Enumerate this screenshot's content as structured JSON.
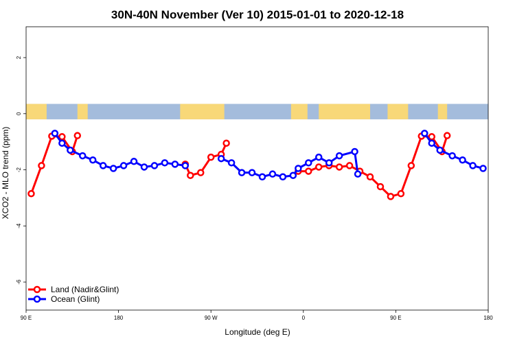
{
  "chart_data": {
    "type": "line",
    "title": "30N-40N November (Ver 10)   2015-01-01 to 2020-12-18",
    "xlabel": "Longitude (deg E)",
    "ylabel": "XCO2 - MLO trend (ppm)",
    "xlim": [
      90,
      540
    ],
    "ylim": [
      -7,
      3.1
    ],
    "x_ticks": [
      {
        "value": 90,
        "label": "90 E"
      },
      {
        "value": 180,
        "label": "180"
      },
      {
        "value": 270,
        "label": "90 W"
      },
      {
        "value": 360,
        "label": "0"
      },
      {
        "value": 450,
        "label": "90 E"
      },
      {
        "value": 540,
        "label": "180"
      }
    ],
    "y_ticks": [
      {
        "value": 2,
        "label": "2"
      },
      {
        "value": 0,
        "label": "0"
      },
      {
        "value": -2,
        "label": "-2"
      },
      {
        "value": -4,
        "label": "-4"
      },
      {
        "value": -6,
        "label": "-6"
      }
    ],
    "legend_position": "bottom-left",
    "map_strip": {
      "y_range": [
        -0.2,
        0.35
      ],
      "ocean_color": "#a4bcdc",
      "land_color": "#f8d878",
      "land_ranges": [
        [
          90,
          110
        ],
        [
          140,
          150
        ],
        [
          240,
          283
        ],
        [
          348,
          364
        ],
        [
          375,
          425
        ],
        [
          442,
          462
        ],
        [
          491,
          500
        ]
      ]
    },
    "series": [
      {
        "name": "Land (Nadir&Glint)",
        "color": "#ff0000",
        "segments": [
          [
            [
              95,
              -2.85
            ],
            [
              105,
              -1.85
            ],
            [
              115,
              -0.8
            ],
            [
              125,
              -0.82
            ],
            [
              135,
              -1.35
            ],
            [
              140,
              -0.78
            ]
          ],
          [
            [
              245,
              -1.8
            ],
            [
              250,
              -2.2
            ],
            [
              260,
              -2.1
            ],
            [
              270,
              -1.55
            ],
            [
              280,
              -1.45
            ],
            [
              285,
              -1.05
            ]
          ],
          [
            [
              355,
              -2.05
            ],
            [
              365,
              -2.05
            ],
            [
              375,
              -1.9
            ],
            [
              385,
              -1.85
            ],
            [
              395,
              -1.9
            ],
            [
              405,
              -1.85
            ],
            [
              415,
              -2.05
            ],
            [
              425,
              -2.25
            ],
            [
              435,
              -2.6
            ],
            [
              445,
              -2.95
            ],
            [
              455,
              -2.85
            ],
            [
              465,
              -1.85
            ],
            [
              475,
              -0.8
            ],
            [
              485,
              -0.82
            ],
            [
              495,
              -1.35
            ],
            [
              500,
              -0.78
            ]
          ]
        ]
      },
      {
        "name": "Ocean (Glint)",
        "color": "#0000ff",
        "segments": [
          [
            [
              118,
              -0.7
            ],
            [
              125,
              -1.05
            ],
            [
              133,
              -1.3
            ],
            [
              145,
              -1.5
            ],
            [
              155,
              -1.65
            ],
            [
              165,
              -1.85
            ],
            [
              175,
              -1.95
            ],
            [
              185,
              -1.85
            ],
            [
              195,
              -1.7
            ],
            [
              205,
              -1.9
            ],
            [
              215,
              -1.85
            ],
            [
              225,
              -1.75
            ],
            [
              235,
              -1.8
            ],
            [
              245,
              -1.85
            ]
          ],
          [
            [
              280,
              -1.6
            ],
            [
              290,
              -1.75
            ],
            [
              300,
              -2.1
            ],
            [
              310,
              -2.1
            ],
            [
              320,
              -2.25
            ],
            [
              330,
              -2.15
            ],
            [
              340,
              -2.25
            ],
            [
              350,
              -2.2
            ],
            [
              355,
              -1.95
            ],
            [
              365,
              -1.75
            ],
            [
              375,
              -1.55
            ],
            [
              385,
              -1.75
            ],
            [
              395,
              -1.5
            ],
            [
              410,
              -1.35
            ],
            [
              413,
              -2.15
            ]
          ],
          [
            [
              478,
              -0.7
            ],
            [
              485,
              -1.05
            ],
            [
              493,
              -1.3
            ],
            [
              505,
              -1.5
            ],
            [
              515,
              -1.65
            ],
            [
              525,
              -1.85
            ],
            [
              535,
              -1.95
            ]
          ]
        ]
      }
    ]
  }
}
